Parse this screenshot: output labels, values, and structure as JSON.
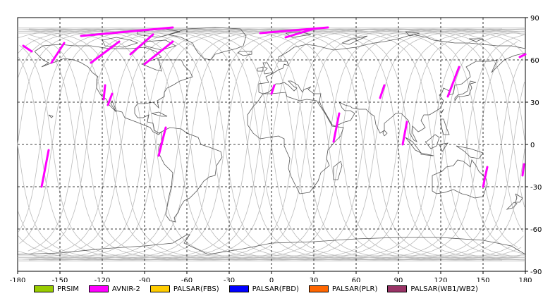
{
  "map": {
    "lon_ticks": [
      "-180",
      "-150",
      "-120",
      "-90",
      "-60",
      "-30",
      "0",
      "30",
      "60",
      "90",
      "120",
      "150",
      "180"
    ],
    "lat_ticks": [
      "90",
      "60",
      "30",
      "0",
      "-30",
      "-60",
      "-90"
    ]
  },
  "legend": [
    {
      "label": "PRSIM",
      "color": "#99cc00"
    },
    {
      "label": "AVNIR-2",
      "color": "#ff00ff"
    },
    {
      "label": "PALSAR(FBS)",
      "color": "#ffcc00"
    },
    {
      "label": "PALSAR(FBD)",
      "color": "#0000ff"
    },
    {
      "label": "PALSAR(PLR)",
      "color": "#ff6600"
    },
    {
      "label": "PALSAR(WB1/WB2)",
      "color": "#993366"
    }
  ],
  "colors": {
    "coastline": "#555555",
    "orbit_track": "#bbbbbb",
    "grid": "#000000",
    "avnir_swath": "#ff00ff"
  },
  "avnir_swaths": [
    {
      "lon": -176,
      "lat": 70,
      "lon2": -170,
      "lat2": 66
    },
    {
      "lon": -156,
      "lat": 58,
      "lon2": -147,
      "lat2": 72
    },
    {
      "lon": -163,
      "lat": -30,
      "lon2": -158,
      "lat2": -4
    },
    {
      "lon": -128,
      "lat": 58,
      "lon2": -108,
      "lat2": 73
    },
    {
      "lon": -119,
      "lat": 32,
      "lon2": -118,
      "lat2": 42
    },
    {
      "lon": -116,
      "lat": 28,
      "lon2": -113,
      "lat2": 36
    },
    {
      "lon": -90,
      "lat": 57,
      "lon2": -70,
      "lat2": 73
    },
    {
      "lon": -100,
      "lat": 64,
      "lon2": -84,
      "lat2": 78
    },
    {
      "lon": -135,
      "lat": 77,
      "lon2": -70,
      "lat2": 83
    },
    {
      "lon": -80,
      "lat": -8,
      "lon2": -75,
      "lat2": 12
    },
    {
      "lon": -8,
      "lat": 79,
      "lon2": 40,
      "lat2": 83
    },
    {
      "lon": 10,
      "lat": 76,
      "lon2": 30,
      "lat2": 82
    },
    {
      "lon": 0,
      "lat": 36,
      "lon2": 2,
      "lat2": 42
    },
    {
      "lon": 44,
      "lat": 2,
      "lon2": 48,
      "lat2": 22
    },
    {
      "lon": 77,
      "lat": 33,
      "lon2": 80,
      "lat2": 42
    },
    {
      "lon": 93,
      "lat": 0,
      "lon2": 96,
      "lat2": 16
    },
    {
      "lon": 125,
      "lat": 34,
      "lon2": 133,
      "lat2": 55
    },
    {
      "lon": 150,
      "lat": -30,
      "lon2": 153,
      "lat2": -16
    },
    {
      "lon": 178,
      "lat": -22,
      "lon2": 179,
      "lat2": -14
    },
    {
      "lon": 176,
      "lat": 62,
      "lon2": 180,
      "lat2": 64
    }
  ]
}
